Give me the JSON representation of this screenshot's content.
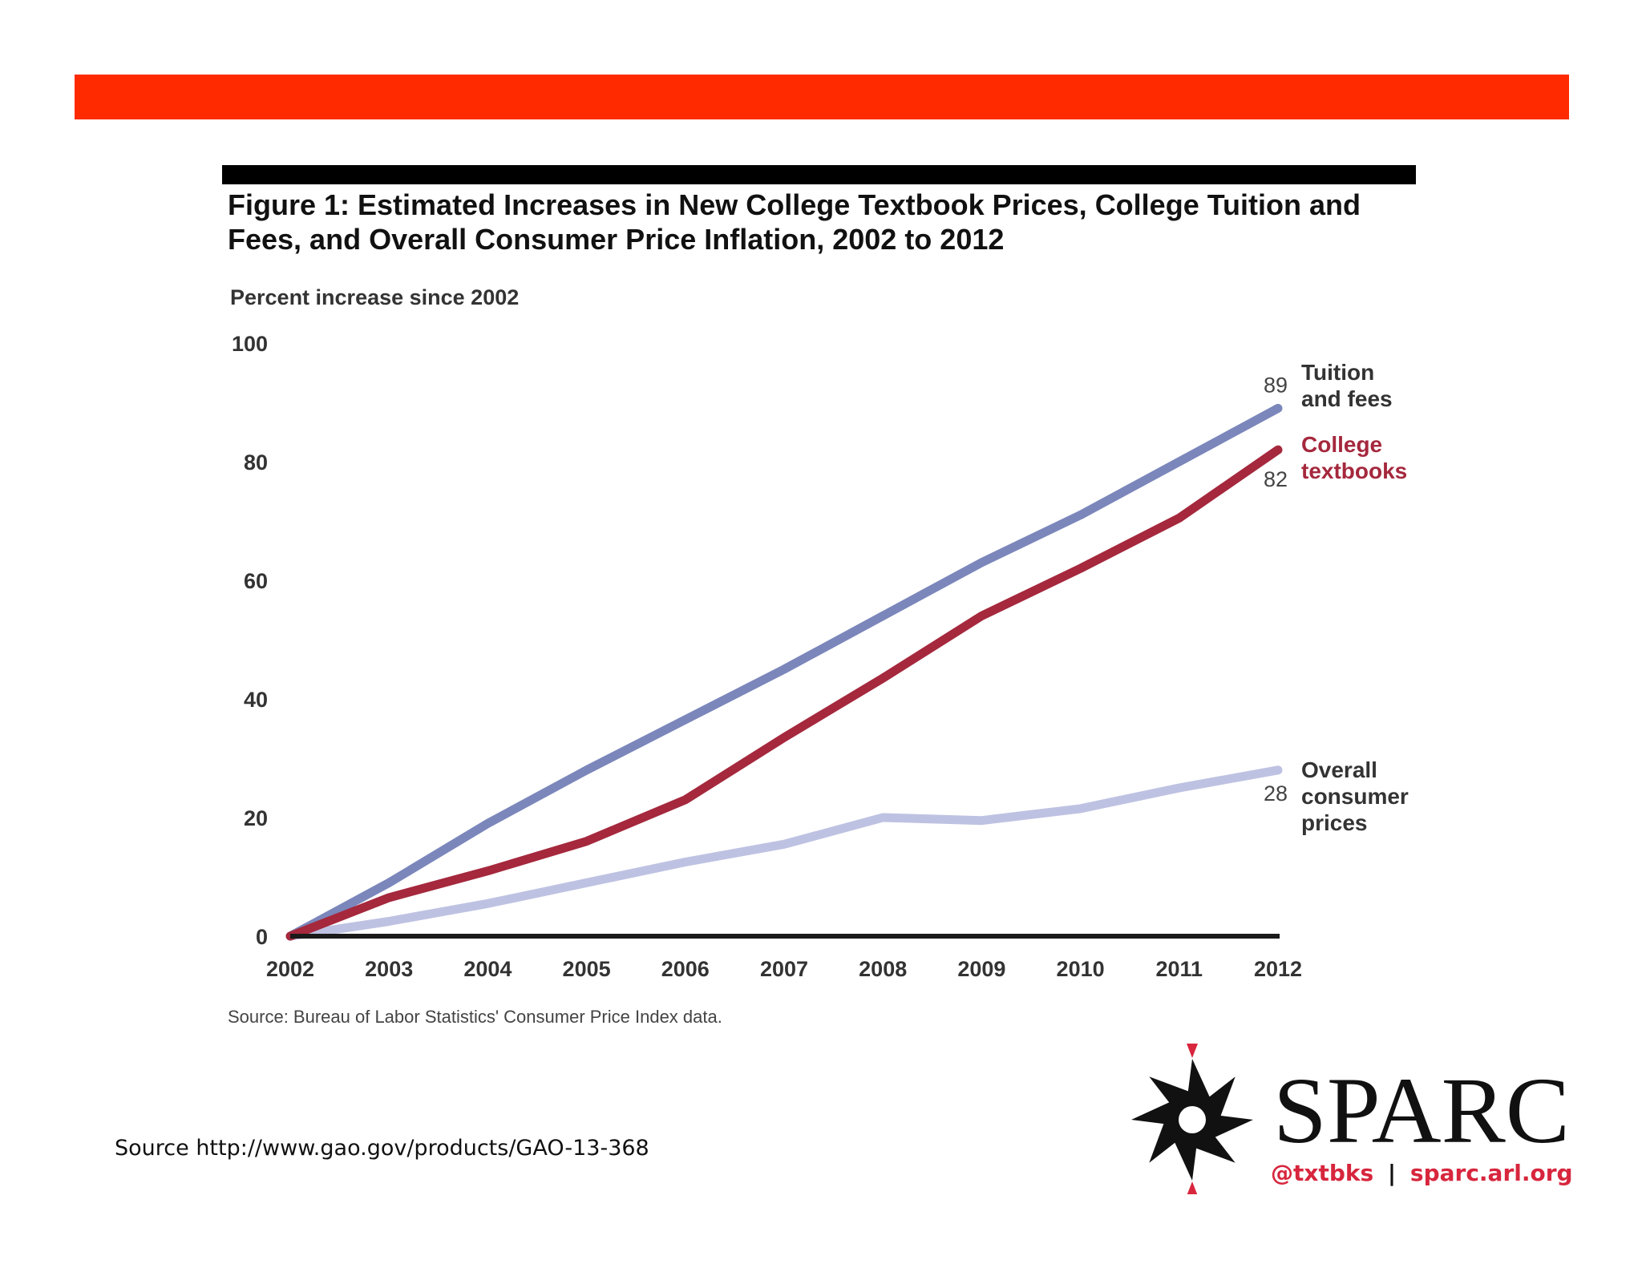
{
  "figure_title": "Figure 1: Estimated Increases in New College Textbook Prices, College Tuition and Fees, and Overall Consumer Price Inflation, 2002 to 2012",
  "footer_source": "Source http://www.gao.gov/products/GAO-13-368",
  "colors": {
    "band": "#ff2a00",
    "tuition": "#7b87bb",
    "textbooks": "#a5283d",
    "cpi": "#bec2e2",
    "axis": "#1a1a1a",
    "logo_red": "#d7263d"
  },
  "logo": {
    "wordmark": "SPARC",
    "twitter": "@txtbks",
    "separator": "|",
    "url": "sparc.arl.org"
  },
  "chart_data": {
    "type": "line",
    "title": "",
    "ylabel": "Percent increase since 2002",
    "xlabel": "",
    "x": [
      2002,
      2003,
      2004,
      2005,
      2006,
      2007,
      2008,
      2009,
      2010,
      2011,
      2012
    ],
    "ylim": [
      0,
      100
    ],
    "yticks": [
      0,
      20,
      40,
      60,
      80,
      100
    ],
    "grid": false,
    "legend": "direct labels at right end of lines",
    "source": "Source: Bureau of Labor Statistics' Consumer Price Index data.",
    "series": [
      {
        "name": "Tuition and fees",
        "label_lines": [
          "Tuition",
          "and fees"
        ],
        "end_label": "89",
        "color": "#7b87bb",
        "values": [
          0,
          9,
          19,
          28,
          36.5,
          45,
          54,
          63,
          71,
          80,
          89
        ]
      },
      {
        "name": "College textbooks",
        "label_lines": [
          "College",
          "textbooks"
        ],
        "end_label": "82",
        "color": "#a5283d",
        "values": [
          0,
          6.5,
          11,
          16,
          23,
          33.5,
          43.5,
          54,
          62,
          70.5,
          82
        ]
      },
      {
        "name": "Overall consumer prices",
        "label_lines": [
          "Overall",
          "consumer",
          "prices"
        ],
        "end_label": "28",
        "color": "#bec2e2",
        "values": [
          0,
          2.5,
          5.5,
          9,
          12.5,
          15.5,
          20,
          19.5,
          21.5,
          25,
          28
        ]
      }
    ]
  }
}
